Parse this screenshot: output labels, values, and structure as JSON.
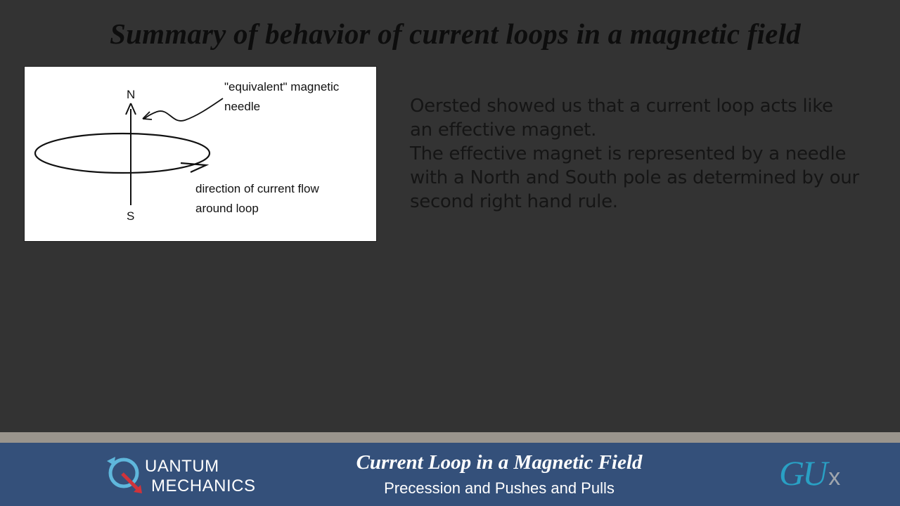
{
  "slide": {
    "title": "Summary of behavior of current loops in a magnetic field",
    "body_line1": "Oersted showed us that a current loop acts like an effective magnet.",
    "body_line2": "The effective magnet is represented by a needle with a North and South pole as determined by our second right hand rule."
  },
  "figure": {
    "north_label": "N",
    "south_label": "S",
    "needle_label_line1": "\"equivalent\" magnetic",
    "needle_label_line2": "needle",
    "current_label_line1": "direction of current flow",
    "current_label_line2": "around loop"
  },
  "footer": {
    "logo_line1": "UANTUM",
    "logo_line2": "MECHANICS",
    "title": "Current Loop in a Magnetic Field",
    "subtitle": "Precession and Pushes and Pulls",
    "brand_gu": "GU",
    "brand_x": "x"
  },
  "colors": {
    "background": "#333333",
    "footer_band": "#34507a",
    "footer_rule": "#9a958d",
    "brand_accent": "#29a0c4",
    "logo_arrow": "#d0333a"
  }
}
